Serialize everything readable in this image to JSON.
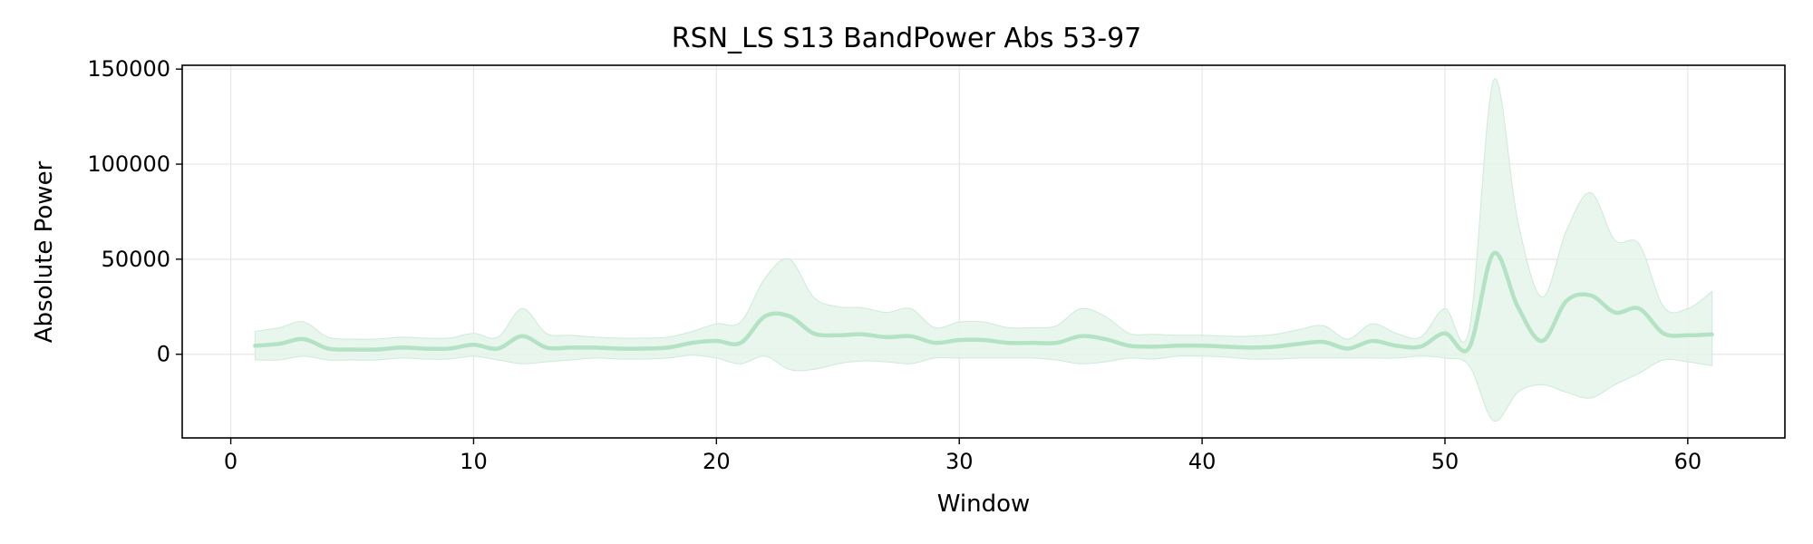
{
  "chart_data": {
    "type": "line",
    "title": "RSN_LS S13 BandPower Abs 53-97",
    "xlabel": "Window",
    "ylabel": "Absolute Power",
    "xlim": [
      -2,
      64
    ],
    "ylim": [
      -44000,
      152000
    ],
    "xticks": [
      0,
      10,
      20,
      30,
      40,
      50,
      60
    ],
    "yticks": [
      0,
      50000,
      100000,
      150000
    ],
    "grid": true,
    "legend": "none",
    "colors": {
      "line": "#b3e2c4",
      "band": "#e4f4ea",
      "grid": "#e6e6e6",
      "axis": "#000000"
    },
    "series": [
      {
        "x": [
          1,
          2,
          3,
          4,
          5,
          6,
          7,
          8,
          9,
          10,
          11,
          12,
          13,
          14,
          15,
          16,
          17,
          18,
          19,
          20,
          21,
          22,
          23,
          24,
          25,
          26,
          27,
          28,
          29,
          30,
          31,
          32,
          33,
          34,
          35,
          36,
          37,
          38,
          39,
          40,
          41,
          42,
          43,
          44,
          45,
          46,
          47,
          48,
          49,
          50,
          51,
          52,
          53,
          54,
          55,
          56,
          57,
          58,
          59,
          60,
          61
        ],
        "mean": [
          4500,
          5500,
          8000,
          3000,
          2500,
          2500,
          3500,
          3000,
          3000,
          5000,
          3000,
          9500,
          3500,
          3500,
          3500,
          3000,
          3000,
          3500,
          6000,
          7000,
          6000,
          20000,
          20000,
          11000,
          10000,
          10500,
          9000,
          9500,
          6000,
          7500,
          7500,
          6000,
          6000,
          6000,
          9500,
          8000,
          4500,
          4000,
          4500,
          4500,
          4000,
          3500,
          4000,
          5500,
          6500,
          3000,
          7000,
          4500,
          4000,
          11000,
          3500,
          53000,
          25000,
          7000,
          28000,
          31000,
          22000,
          24000,
          11000,
          10000,
          10500
        ],
        "upper": [
          12000,
          14000,
          17000,
          9000,
          8000,
          8000,
          9000,
          8500,
          8500,
          11000,
          9000,
          24000,
          11000,
          10000,
          9000,
          8500,
          8500,
          9000,
          12000,
          16000,
          17000,
          40000,
          50000,
          30000,
          25000,
          24500,
          22000,
          24000,
          14000,
          17000,
          17000,
          14000,
          14000,
          15000,
          24000,
          20000,
          11000,
          10500,
          10000,
          10000,
          9500,
          9500,
          10500,
          13000,
          15000,
          8000,
          16000,
          11000,
          9000,
          24000,
          13000,
          144000,
          70000,
          30000,
          65000,
          85000,
          60000,
          58000,
          25000,
          24000,
          33000
        ],
        "lower": [
          -3000,
          -3000,
          -1000,
          -3000,
          -3000,
          -3000,
          -2000,
          -2500,
          -2500,
          -1000,
          -3000,
          -5000,
          -4000,
          -3000,
          -2000,
          -2500,
          -2500,
          -2000,
          -500,
          -2000,
          -5000,
          -1000,
          -8000,
          -8000,
          -5000,
          -3500,
          -4000,
          -5000,
          -2000,
          -2000,
          -2000,
          -2000,
          -2000,
          -3000,
          -5000,
          -4000,
          -2000,
          -2500,
          -1000,
          -1000,
          -1500,
          -2500,
          -2500,
          -2000,
          -2000,
          -2000,
          -2000,
          -2000,
          -1000,
          -2000,
          -6000,
          -35000,
          -20000,
          -16000,
          -20000,
          -23000,
          -16000,
          -10000,
          -3000,
          -4000,
          -6000
        ]
      }
    ]
  }
}
